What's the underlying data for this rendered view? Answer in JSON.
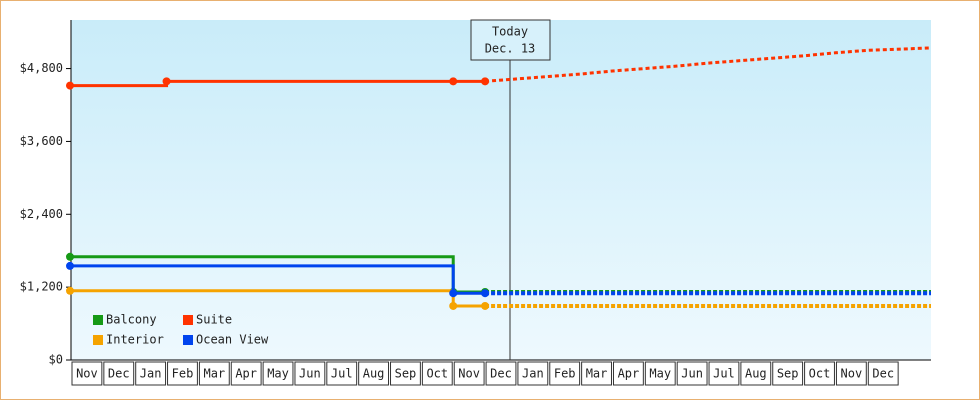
{
  "chart_data": {
    "type": "step-line",
    "categories": [
      "Nov",
      "Dec",
      "Jan",
      "Feb",
      "Mar",
      "Apr",
      "May",
      "Jun",
      "Jul",
      "Aug",
      "Sep",
      "Oct",
      "Nov",
      "Dec",
      "Jan",
      "Feb",
      "Mar",
      "Apr",
      "May",
      "Jun",
      "Jul",
      "Aug",
      "Sep",
      "Oct",
      "Nov",
      "Dec"
    ],
    "series": [
      {
        "name": "Balcony",
        "color": "#169a16",
        "values": [
          1700,
          1700,
          1700,
          1700,
          1700,
          1700,
          1700,
          1700,
          1700,
          1700,
          1700,
          1700,
          1120,
          1120,
          null,
          null,
          null,
          null,
          null,
          null,
          null,
          null,
          null,
          null,
          null,
          null
        ],
        "forecast": [
          null,
          null,
          null,
          null,
          null,
          null,
          null,
          null,
          null,
          null,
          null,
          null,
          null,
          1120,
          1120,
          1120,
          1120,
          1120,
          1120,
          1120,
          1120,
          1120,
          1120,
          1120,
          1120,
          1120
        ]
      },
      {
        "name": "Suite",
        "color": "#ff3300",
        "values": [
          4520,
          4520,
          4520,
          4590,
          4590,
          4590,
          4590,
          4590,
          4590,
          4590,
          4590,
          4590,
          4590,
          4590,
          null,
          null,
          null,
          null,
          null,
          null,
          null,
          null,
          null,
          null,
          null,
          null
        ],
        "forecast": [
          null,
          null,
          null,
          null,
          null,
          null,
          null,
          null,
          null,
          null,
          null,
          null,
          null,
          4590,
          4630,
          4670,
          4710,
          4760,
          4800,
          4840,
          4890,
          4930,
          4970,
          5010,
          5060,
          5100
        ]
      },
      {
        "name": "Interior",
        "color": "#f5a300",
        "values": [
          1140,
          1140,
          1140,
          1140,
          1140,
          1140,
          1140,
          1140,
          1140,
          1140,
          1140,
          1140,
          890,
          890,
          null,
          null,
          null,
          null,
          null,
          null,
          null,
          null,
          null,
          null,
          null,
          null
        ],
        "forecast": [
          null,
          null,
          null,
          null,
          null,
          null,
          null,
          null,
          null,
          null,
          null,
          null,
          null,
          890,
          890,
          890,
          890,
          890,
          890,
          890,
          890,
          890,
          890,
          890,
          890,
          890
        ]
      },
      {
        "name": "Ocean View",
        "color": "#0044ee",
        "values": [
          1550,
          1550,
          1550,
          1550,
          1550,
          1550,
          1550,
          1550,
          1550,
          1550,
          1550,
          1550,
          1100,
          1100,
          null,
          null,
          null,
          null,
          null,
          null,
          null,
          null,
          null,
          null,
          null,
          null
        ],
        "forecast": [
          null,
          null,
          null,
          null,
          null,
          null,
          null,
          null,
          null,
          null,
          null,
          null,
          null,
          1100,
          1100,
          1100,
          1100,
          1100,
          1100,
          1100,
          1100,
          1100,
          1100,
          1100,
          1100,
          1100
        ]
      }
    ],
    "ylim": [
      0,
      5600
    ],
    "yticks": [
      {
        "value": 0,
        "label": "$0"
      },
      {
        "value": 1200,
        "label": "$1,200"
      },
      {
        "value": 2400,
        "label": "$2,400"
      },
      {
        "value": 3600,
        "label": "$3,600"
      },
      {
        "value": 4800,
        "label": "$4,800"
      }
    ],
    "annotation": {
      "title": "Today",
      "date": "Dec. 13"
    },
    "legend": "bottom-left"
  }
}
